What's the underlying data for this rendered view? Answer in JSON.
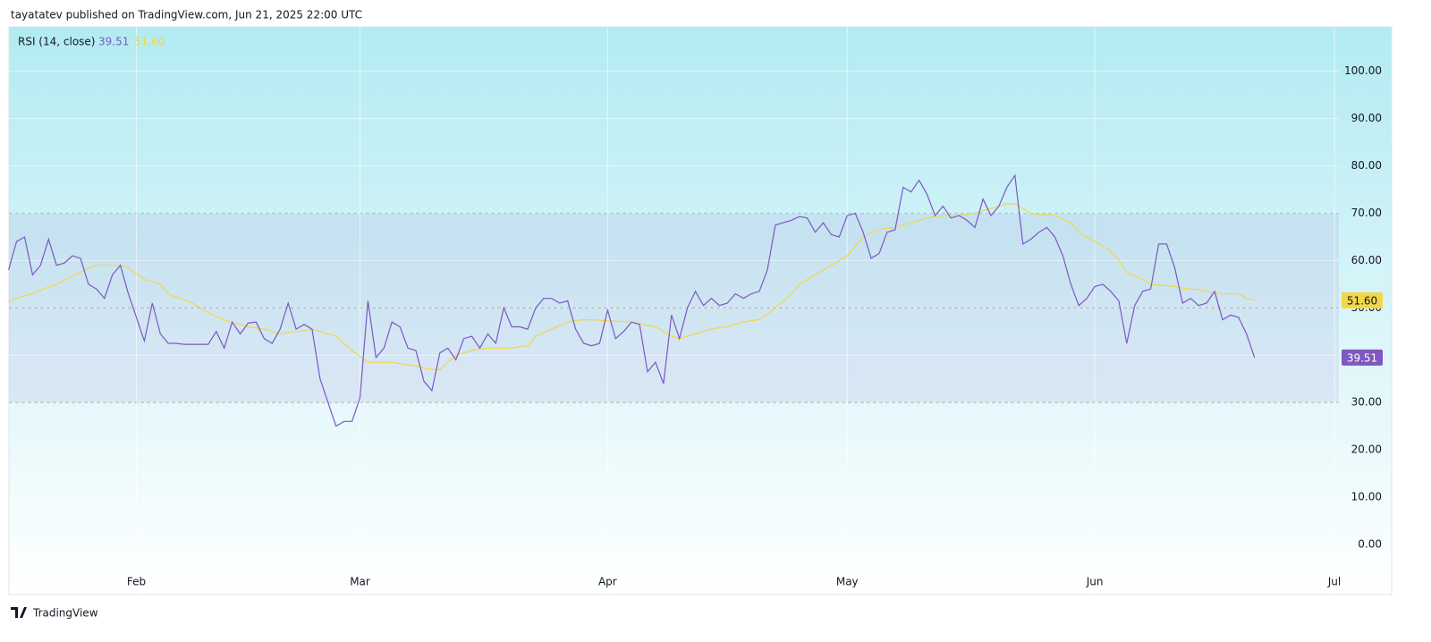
{
  "header": {
    "text": "tayatatev published on TradingView.com, Jun 21, 2025 22:00 UTC"
  },
  "footer": {
    "brand": "TradingView"
  },
  "chart_data": {
    "type": "line",
    "title": "RSI (14, close)",
    "categories": [
      null,
      null,
      null,
      null,
      null,
      null,
      null,
      null,
      null,
      null,
      null,
      null,
      null,
      null,
      null,
      null,
      "Feb",
      null,
      null,
      null,
      null,
      null,
      null,
      null,
      null,
      null,
      null,
      null,
      null,
      null,
      null,
      null,
      null,
      null,
      null,
      null,
      null,
      null,
      null,
      null,
      null,
      null,
      null,
      null,
      "Mar",
      null,
      null,
      null,
      null,
      null,
      null,
      null,
      null,
      null,
      null,
      null,
      null,
      null,
      null,
      null,
      null,
      null,
      null,
      null,
      null,
      null,
      null,
      null,
      null,
      null,
      null,
      null,
      null,
      null,
      null,
      "Apr",
      null,
      null,
      null,
      null,
      null,
      null,
      null,
      null,
      null,
      null,
      null,
      null,
      null,
      null,
      null,
      null,
      null,
      null,
      null,
      null,
      null,
      null,
      null,
      null,
      null,
      null,
      null,
      null,
      null,
      "May",
      null,
      null,
      null,
      null,
      null,
      null,
      null,
      null,
      null,
      null,
      null,
      null,
      null,
      null,
      null,
      null,
      null,
      null,
      null,
      null,
      null,
      null,
      null,
      null,
      null,
      null,
      null,
      null,
      null,
      null,
      "Jun",
      null,
      null,
      null,
      null,
      null,
      null,
      null,
      null,
      null,
      null,
      null,
      null,
      null,
      null,
      null,
      null,
      null,
      null,
      null,
      null,
      null,
      null,
      null,
      null,
      null,
      null,
      null,
      null,
      null,
      "Jul"
    ],
    "series": [
      {
        "name": "RSI",
        "color": "#7e57c2",
        "last_value_label": "39.51",
        "values": [
          58,
          64,
          65,
          57,
          59,
          64.5,
          59,
          59.5,
          61,
          60.5,
          55,
          54,
          52,
          57,
          59,
          53,
          48,
          43,
          51,
          44.5,
          42.5,
          42.5,
          42.3,
          42.3,
          42.3,
          42.3,
          45,
          41.5,
          47,
          44.5,
          46.8,
          47,
          43.5,
          42.5,
          45.5,
          51,
          45.5,
          46.5,
          45.5,
          35,
          30,
          25,
          26,
          26,
          31,
          51.5,
          39.5,
          41.5,
          47,
          46,
          41.5,
          41,
          34.5,
          32.5,
          40.5,
          41.5,
          39,
          43.5,
          44,
          41.5,
          44.5,
          42.5,
          50,
          46,
          46,
          45.5,
          50,
          52,
          52,
          51,
          51.5,
          45.5,
          42.5,
          42,
          42.5,
          49.5,
          43.5,
          45,
          47,
          46.5,
          36.5,
          38.5,
          34,
          48.5,
          43.5,
          50,
          53.5,
          50.5,
          52,
          50.5,
          51,
          53,
          52,
          53,
          53.5,
          58,
          67.5,
          68,
          68.5,
          69.3,
          69,
          66,
          68,
          65.5,
          65,
          69.5,
          70,
          66,
          60.5,
          61.5,
          66,
          66.5,
          75.5,
          74.5,
          77,
          74,
          69.5,
          71.5,
          69,
          69.5,
          68.5,
          67,
          73,
          69.5,
          71.5,
          75.5,
          78,
          63.5,
          64.5,
          66,
          67,
          65,
          61,
          55,
          50.5,
          52,
          54.5,
          55,
          53.5,
          51.5,
          42.5,
          50.5,
          53.5,
          54,
          63.5,
          63.5,
          58.5,
          51,
          52,
          50.5,
          51,
          53.5,
          47.5,
          48.5,
          48,
          44.5,
          39.51,
          null,
          null,
          null,
          null,
          null,
          null,
          null,
          null,
          null,
          null
        ]
      },
      {
        "name": "RSI-based MA",
        "color": "#f2d64b",
        "last_value_label": "51.60",
        "values": [
          51.5,
          52,
          52.5,
          53,
          53.7,
          54.4,
          55,
          55.8,
          56.7,
          57.5,
          58.3,
          59,
          59,
          59,
          59,
          58.5,
          57.2,
          56,
          55.5,
          55,
          53,
          52.3,
          51.7,
          51,
          50,
          49,
          48.2,
          47.5,
          47,
          46.5,
          46,
          45.8,
          45.5,
          45,
          44.5,
          44.8,
          45,
          45.2,
          45.5,
          45,
          44.5,
          44,
          42.5,
          41,
          39.7,
          38.5,
          38.5,
          38.5,
          38.5,
          38.2,
          38,
          37.7,
          37.3,
          37,
          37,
          38.5,
          40,
          40.5,
          41,
          41.3,
          41.5,
          41.5,
          41.5,
          41.5,
          41.8,
          42,
          44,
          44.8,
          45.5,
          46.3,
          47,
          47.3,
          47.5,
          47.5,
          47.4,
          47.3,
          47.2,
          47.1,
          47,
          46.7,
          46.3,
          46,
          45,
          44,
          43.5,
          44,
          44.5,
          45,
          45.5,
          45.8,
          46,
          46.5,
          47,
          47.3,
          47.5,
          48.7,
          50,
          51.5,
          53,
          55,
          56,
          57,
          58,
          59,
          60,
          61,
          63,
          65,
          65.8,
          66.5,
          66.8,
          67,
          67.5,
          68,
          68.5,
          69,
          69.3,
          69.5,
          69.5,
          69.5,
          69.8,
          70,
          70.5,
          71,
          71.5,
          72,
          72,
          71,
          70,
          69.8,
          69.7,
          69.5,
          68.7,
          68,
          66,
          65,
          64,
          63,
          62,
          60,
          57.5,
          56.8,
          56,
          55,
          54.8,
          54.7,
          54.5,
          54.2,
          54,
          53.8,
          53.5,
          53.2,
          53,
          53,
          53,
          52,
          51.6,
          null,
          null,
          null,
          null,
          null,
          null,
          null,
          null,
          null,
          null
        ]
      }
    ],
    "ylim": [
      -10.6,
      109.4
    ],
    "yticks": [
      {
        "value": 0,
        "label": "0.00"
      },
      {
        "value": 10,
        "label": "10.00"
      },
      {
        "value": 20,
        "label": "20.00"
      },
      {
        "value": 30,
        "label": "30.00"
      },
      {
        "value": 40,
        "label": "40.00"
      },
      {
        "value": 50,
        "label": "50.00"
      },
      {
        "value": 60,
        "label": "60.00"
      },
      {
        "value": 70,
        "label": "70.00"
      },
      {
        "value": 80,
        "label": "80.00"
      },
      {
        "value": 90,
        "label": "90.00"
      },
      {
        "value": 100,
        "label": "100.00"
      }
    ],
    "bands": {
      "upper": 70,
      "middle": 50,
      "lower": 30
    },
    "grid": true
  }
}
